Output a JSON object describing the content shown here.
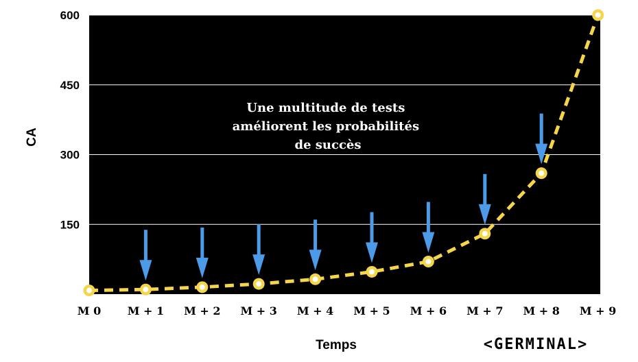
{
  "chart_data": {
    "type": "line",
    "title": "",
    "xlabel": "Temps",
    "ylabel": "CA",
    "categories": [
      "M 0",
      "M + 1",
      "M + 2",
      "M + 3",
      "M + 4",
      "M + 5",
      "M + 6",
      "M + 7",
      "M + 8",
      "M + 9"
    ],
    "series": [
      {
        "values": [
          8,
          10,
          15,
          22,
          32,
          48,
          70,
          130,
          260,
          600
        ]
      }
    ],
    "ylim": [
      0,
      600
    ],
    "yticks": [
      "150",
      "300",
      "450",
      "600"
    ],
    "grid": true,
    "legend": "none",
    "annotation": {
      "lines": [
        "Une multitude de tests",
        "améliorent les probabilités",
        "de succès"
      ]
    },
    "test_arrows_at": [
      "M + 1",
      "M + 2",
      "M + 3",
      "M + 4",
      "M + 5",
      "M + 6",
      "M + 7",
      "M + 8"
    ],
    "colors": {
      "plot_background": "#000000",
      "line": "#f5d54a",
      "marker_fill": "#f5d54a",
      "marker_center": "#ffffff",
      "arrows": "#4c9be8",
      "gridlines": "#ffffff"
    }
  },
  "brand": {
    "text": "<GERMINAL>"
  }
}
